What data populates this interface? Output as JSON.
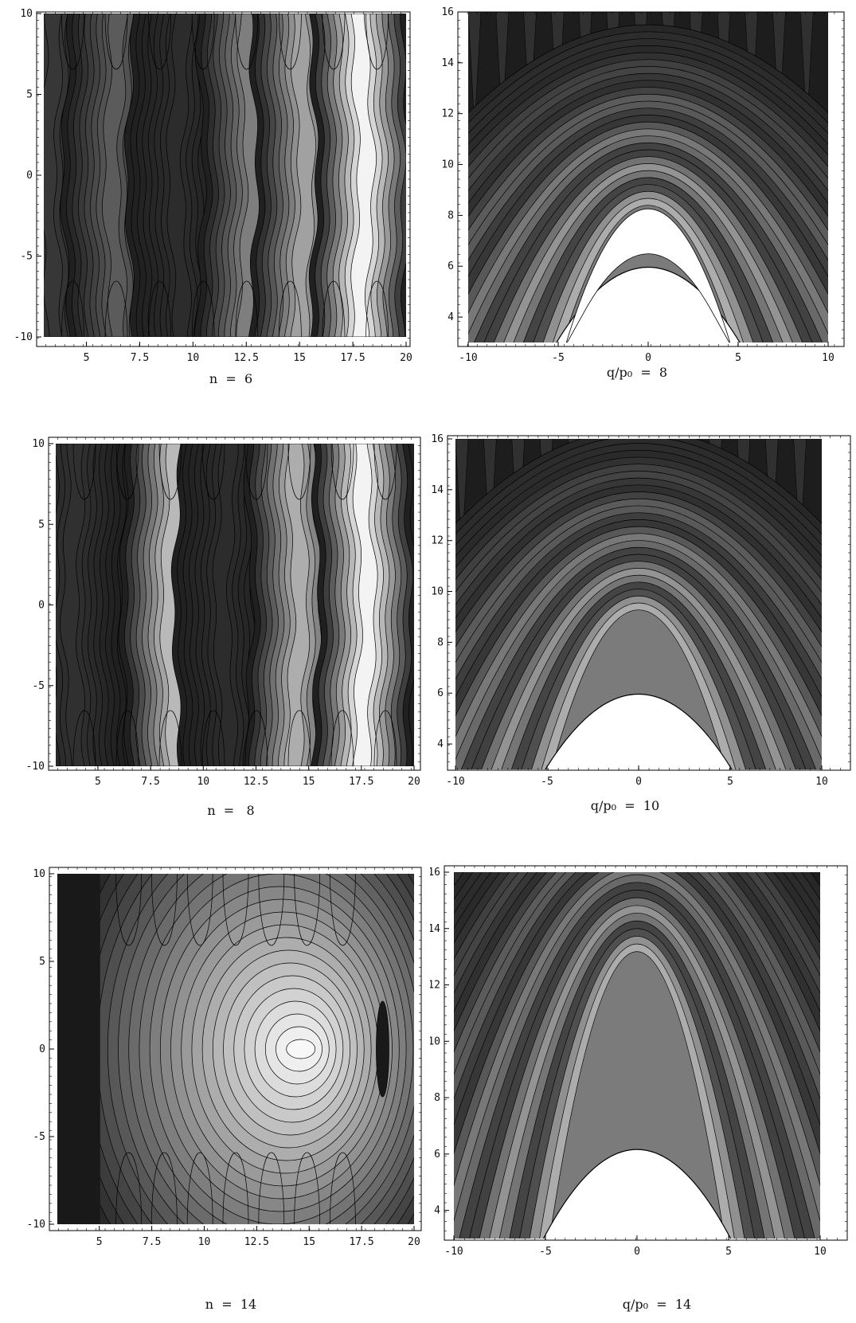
{
  "figure": {
    "colors": {
      "frame": "#000000",
      "background": "#ffffff",
      "dark": "#141414",
      "light": "#ffffff"
    },
    "grid": false
  },
  "captions": [
    {
      "prefix": "n  =  ",
      "value": "6"
    },
    {
      "prefix": "q/p₀  =  ",
      "value": "8"
    },
    {
      "prefix": "n  =   ",
      "value": "8"
    },
    {
      "prefix": "q/p₀  =  ",
      "value": "10"
    },
    {
      "prefix": "n  =  ",
      "value": "14"
    },
    {
      "prefix": "q/p₀  =  ",
      "value": "14"
    }
  ],
  "chart_data": [
    {
      "type": "heatmap",
      "title": "n = 6",
      "xlim": [
        3,
        20
      ],
      "ylim": [
        -10,
        10
      ],
      "xticks": [
        "5",
        "7.5",
        "10",
        "12.5",
        "15",
        "17.5",
        "20"
      ],
      "yticks": [
        "10",
        "5",
        "0",
        "-5",
        "-10"
      ],
      "bands_x": [
        3.5,
        6.5,
        9.5,
        12.5,
        15.0,
        17.8
      ],
      "bands_level": [
        0.15,
        0.3,
        0.1,
        0.45,
        0.6,
        0.95
      ]
    },
    {
      "type": "heatmap",
      "title": "q/p0 = 8",
      "xlim": [
        -10,
        10
      ],
      "ylim": [
        3,
        16
      ],
      "xticks": [
        "-10",
        "-5",
        "0",
        "5",
        "10"
      ],
      "yticks": [
        "16",
        "14",
        "12",
        "10",
        "8",
        "6",
        "4"
      ],
      "apex_y": 8.6,
      "hole_bottom_y": 6.1
    },
    {
      "type": "heatmap",
      "title": "n = 8",
      "xlim": [
        3,
        20
      ],
      "ylim": [
        -10,
        10
      ],
      "xticks": [
        "5",
        "7.5",
        "10",
        "12.5",
        "15",
        "17.5",
        "20"
      ],
      "yticks": [
        "10",
        "5",
        "0",
        "-5",
        "-10"
      ],
      "bands_x": [
        4.0,
        8.7,
        11.2,
        14.3,
        17.5
      ],
      "bands_level": [
        0.12,
        0.7,
        0.1,
        0.65,
        0.95
      ]
    },
    {
      "type": "heatmap",
      "title": "q/p0 = 10",
      "xlim": [
        -10,
        10
      ],
      "ylim": [
        3,
        16
      ],
      "xticks": [
        "-10",
        "-5",
        "0",
        "5",
        "10"
      ],
      "yticks": [
        "16",
        "14",
        "12",
        "10",
        "8",
        "6",
        "4"
      ],
      "apex_y": 9.5,
      "hole_bottom_y": 6.1
    },
    {
      "type": "heatmap",
      "title": "n = 14",
      "xlim": [
        3,
        20
      ],
      "ylim": [
        -10,
        10
      ],
      "xticks": [
        "5",
        "7.5",
        "10",
        "12.5",
        "15",
        "17.5",
        "20"
      ],
      "yticks": [
        "10",
        "5",
        "0",
        "-5",
        "-10"
      ],
      "peak_x": 14.6,
      "peak_y": 0
    },
    {
      "type": "heatmap",
      "title": "q/p0 = 14",
      "xlim": [
        -10,
        10
      ],
      "ylim": [
        3,
        16
      ],
      "xticks": [
        "-10",
        "-5",
        "0",
        "5",
        "10"
      ],
      "yticks": [
        "16",
        "14",
        "12",
        "10",
        "8",
        "6",
        "4"
      ],
      "apex_y": 13.5,
      "hole_bottom_y": 6.3
    }
  ]
}
